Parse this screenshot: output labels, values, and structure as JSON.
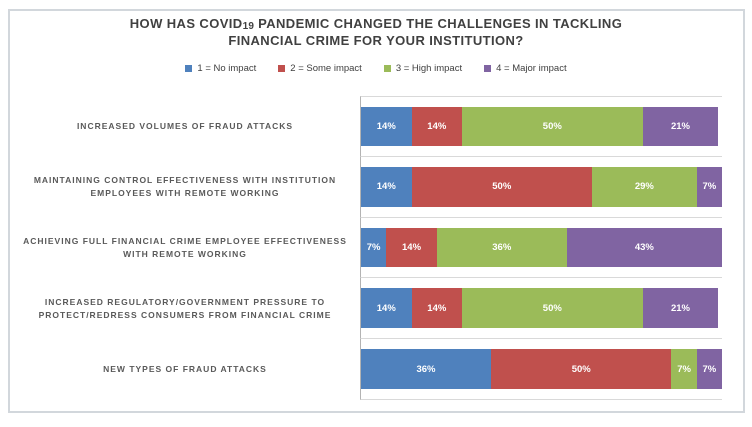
{
  "chart_data": {
    "type": "bar",
    "orientation": "horizontal",
    "stacked": true,
    "unit": "%",
    "xlim": [
      0,
      100
    ],
    "axis_tick_labels_visible": false,
    "gridlines": "category-separators",
    "legend_position": "top",
    "value_labels": "inside-white-percent",
    "title": "HOW HAS COVID19 PANDEMIC CHANGED THE CHALLENGES IN TACKLING FINANCIAL CRIME FOR YOUR INSTITUTION?",
    "title_parts": {
      "pre": "HOW HAS COVID",
      "num": "19",
      "post": " PANDEMIC CHANGED THE CHALLENGES IN TACKLING FINANCIAL CRIME FOR YOUR INSTITUTION?"
    },
    "categories": [
      "INCREASED VOLUMES OF FRAUD ATTACKS",
      "MAINTAINING CONTROL EFFECTIVENESS WITH INSTITUTION EMPLOYEES WITH REMOTE WORKING",
      "ACHIEVING FULL FINANCIAL CRIME EMPLOYEE EFFECTIVENESS WITH REMOTE WORKING",
      "INCREASED REGULATORY/GOVERNMENT PRESSURE TO PROTECT/REDRESS CONSUMERS FROM FINANCIAL CRIME",
      "NEW TYPES OF FRAUD ATTACKS"
    ],
    "series": [
      {
        "name": "1 = No impact",
        "color": "#4F81BD",
        "values": [
          14,
          14,
          7,
          14,
          36
        ]
      },
      {
        "name": "2 = Some impact",
        "color": "#C0504D",
        "values": [
          14,
          50,
          14,
          14,
          50
        ]
      },
      {
        "name": "3 = High impact",
        "color": "#9BBB59",
        "values": [
          50,
          29,
          36,
          50,
          7
        ]
      },
      {
        "name": "4 = Major impact",
        "color": "#8064A2",
        "values": [
          21,
          7,
          43,
          21,
          7
        ]
      }
    ],
    "colors": {
      "title_text": "#404040",
      "category_label_text": "#595959",
      "legend_text": "#404040",
      "segment_label_text": "#FFFFFF",
      "gridline": "#D9D9D9",
      "axis_line": "#B3B3B3",
      "frame_border": "#D2D7DC"
    }
  }
}
